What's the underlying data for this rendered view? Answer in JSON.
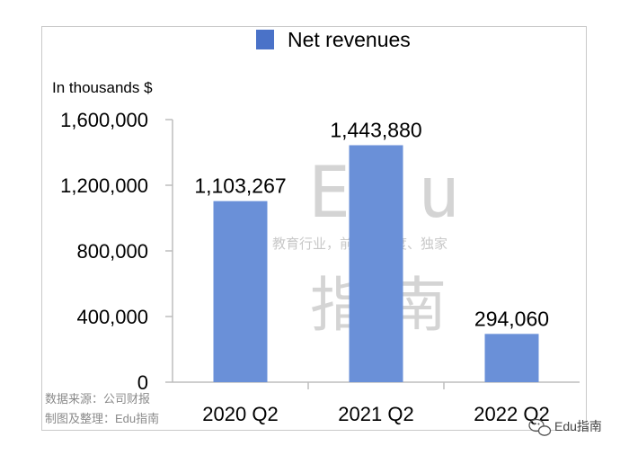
{
  "chart_data": {
    "type": "bar",
    "categories": [
      "2020 Q2",
      "2021 Q2",
      "2022 Q2"
    ],
    "series": [
      {
        "name": "Net revenues",
        "values": [
          1103267,
          1443880,
          294060
        ]
      }
    ],
    "data_labels": [
      "1,103,267",
      "1,443,880",
      "294,060"
    ],
    "unit_label": "In thousands $",
    "yticks": [
      "0",
      "400,000",
      "800,000",
      "1,200,000",
      "1,600,000"
    ],
    "ytick_values": [
      0,
      400000,
      800000,
      1200000,
      1600000
    ],
    "ylim": [
      0,
      1600000
    ],
    "grid": false,
    "legend_position": "top",
    "bar_color": "#6a90d8",
    "legend_color": "#4a72c8"
  },
  "source_note": {
    "line1": "数据来源：公司财报",
    "line2": "制图及整理：Edu指南"
  },
  "watermark": {
    "brand": "Edu",
    "tagline": "教育行业，前沿、深度、独家",
    "cn": "指南"
  },
  "account": {
    "icon": "wechat-icon",
    "name": "Edu指南"
  }
}
